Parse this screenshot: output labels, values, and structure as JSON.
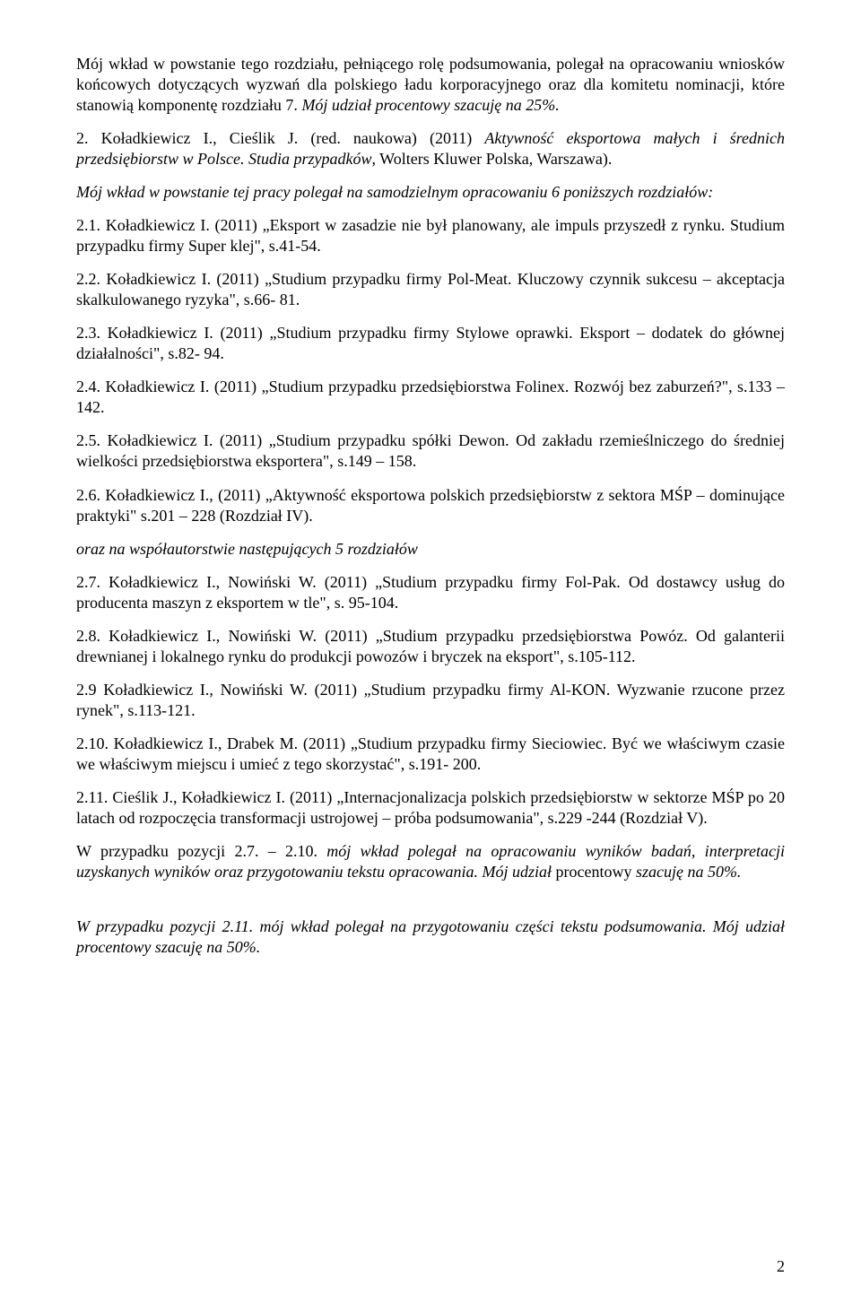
{
  "intro": {
    "p1_prefix": "Mój wkład w powstanie tego rozdziału, pełniącego rolę podsumowania, polegał na opracowaniu wniosków końcowych dotyczących wyzwań dla polskiego ładu korporacyjnego oraz dla komitetu nominacji, które stanowią komponentę rozdziału 7. ",
    "p1_italic": "Mój udział procentowy szacuję na 25%.",
    "p2_a": "2.   Koładkiewicz I., Cieślik J. (red. naukowa) (2011) ",
    "p2_b": "Aktywność eksportowa małych i średnich przedsiębiorstw w Polsce. Studia przypadków",
    "p2_c": ", Wolters Kluwer Polska, Warszawa).",
    "p3": "Mój wkład w powstanie tej pracy polegał na samodzielnym opracowaniu 6 poniższych rozdziałów:"
  },
  "entries": {
    "e21": "2.1.   Koładkiewicz I. (2011) „Eksport w zasadzie nie był planowany, ale impuls przyszedł z rynku. Studium przypadku firmy Super klej\", s.41-54.",
    "e22": "2.2.   Koładkiewicz I. (2011) „Studium przypadku firmy Pol-Meat. Kluczowy czynnik sukcesu – akceptacja skalkulowanego ryzyka\", s.66- 81.",
    "e23": "2.3.   Koładkiewicz I. (2011) „Studium przypadku firmy Stylowe oprawki. Eksport – dodatek do głównej działalności\", s.82- 94.",
    "e24": "2.4.   Koładkiewicz I. (2011) „Studium przypadku przedsiębiorstwa Folinex. Rozwój bez zaburzeń?\", s.133 – 142.",
    "e25": "2.5.   Koładkiewicz I. (2011) „Studium przypadku spółki Dewon. Od zakładu rzemieślniczego do średniej wielkości przedsiębiorstwa eksportera\", s.149 – 158.",
    "e26": "2.6.   Koładkiewicz I., (2011) „Aktywność eksportowa polskich przedsiębiorstw z sektora MŚP – dominujące praktyki\" s.201 – 228 (Rozdział IV).",
    "coauth_heading": "oraz na współautorstwie następujących 5 rozdziałów",
    "e27": "2.7.   Koładkiewicz I., Nowiński W. (2011) „Studium przypadku firmy Fol-Pak. Od dostawcy usług do producenta maszyn z eksportem w tle\", s. 95-104.",
    "e28": "2.8.   Koładkiewicz I., Nowiński W. (2011) „Studium przypadku przedsiębiorstwa Powóz. Od galanterii drewnianej i lokalnego rynku do produkcji powozów i bryczek na eksport\", s.105-112.",
    "e29": "2.9   Koładkiewicz I., Nowiński W. (2011) „Studium przypadku firmy Al-KON. Wyzwanie rzucone przez rynek\", s.113-121.",
    "e210": "2.10.   Koładkiewicz I., Drabek M. (2011) „Studium przypadku firmy Sieciowiec. Być we właściwym czasie we właściwym miejscu i umieć z tego skorzystać\", s.191- 200.",
    "e211": "2.11.   Cieślik J., Koładkiewicz I. (2011) „Internacjonalizacja polskich przedsiębiorstw w sektorze MŚP po 20 latach od rozpoczęcia transformacji ustrojowej – próba podsumowania\", s.229 -244 (Rozdział V)."
  },
  "footer": {
    "f1_a": "W przypadku pozycji 2.7. – 2.10. ",
    "f1_b": "mój wkład polegał na opracowaniu wyników badań, interpretacji uzyskanych wyników oraz przygotowaniu tekstu opracowania. Mój udział ",
    "f1_c": "procentowy ",
    "f1_d": "szacuję na 50%.",
    "f2": "W przypadku pozycji 2.11. mój wkład polegał na przygotowaniu części tekstu podsumowania. Mój udział procentowy szacuję na 50%."
  },
  "pageNumber": "2"
}
